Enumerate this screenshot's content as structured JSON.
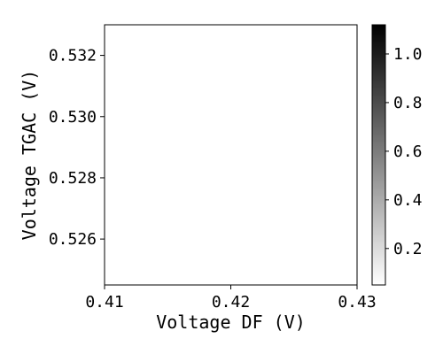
{
  "chart_data": {
    "type": "heatmap",
    "title": "",
    "xlabel": "Voltage DF (V)",
    "ylabel": "Voltage TGAC (V)",
    "xlim": [
      0.41,
      0.43
    ],
    "ylim": [
      0.5245,
      0.533
    ],
    "xticks": [
      0.41,
      0.42,
      0.43
    ],
    "xtick_labels": [
      "0.41",
      "0.42",
      "0.43"
    ],
    "yticks": [
      0.526,
      0.528,
      0.53,
      0.532
    ],
    "ytick_labels": [
      "0.526",
      "0.528",
      "0.530",
      "0.532"
    ],
    "values": [],
    "colorbar": {
      "cmap": "Greys",
      "range": [
        0.05,
        1.12
      ],
      "ticks": [
        0.2,
        0.4,
        0.6,
        0.8,
        1.0
      ],
      "tick_labels": [
        "0.2",
        "0.4",
        "0.6",
        "0.8",
        "1.0"
      ],
      "color_low": "#ffffff",
      "color_high": "#000000"
    },
    "grid": false
  }
}
